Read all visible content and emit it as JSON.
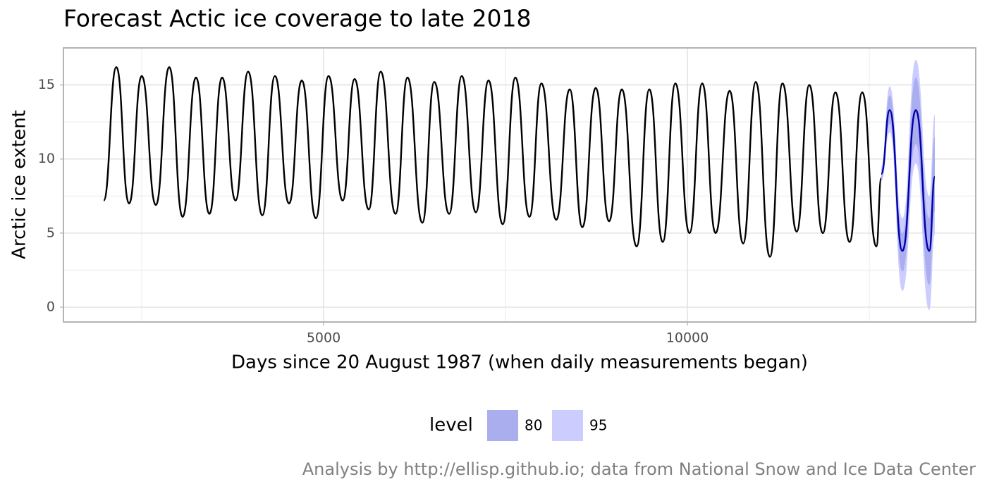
{
  "chart_data": {
    "type": "line",
    "title": "Forecast Actic ice coverage to late 2018",
    "x_label": "Days since 20 August 1987 (when daily measurements began)",
    "y_label": "Arctic ice extent",
    "caption": "Analysis by http://ellisp.github.io; data from National Snow and Ice Data Center",
    "xlim": [
      1424,
      13963
    ],
    "ylim": [
      -1,
      17.5
    ],
    "xticks": [
      5000,
      10000
    ],
    "yticks": [
      0,
      5,
      10,
      15
    ],
    "x_minor_ticks": [
      2500,
      7500,
      12500
    ],
    "y_minor_ticks": [
      2.5,
      7.5,
      12.5
    ],
    "grid": true,
    "legend_title": "level",
    "legend_position": "bottom",
    "series": [
      {
        "color": "#000000",
        "x": [
          1977,
          2151,
          2326,
          2500,
          2694,
          2878,
          3062,
          3246,
          3430,
          3605,
          3789,
          3963,
          4157,
          4331,
          4525,
          4700,
          4893,
          5068,
          5262,
          5426,
          5620,
          5785,
          5988,
          6153,
          6357,
          6521,
          6725,
          6899,
          7093,
          7267,
          7461,
          7636,
          7829,
          7994,
          8198,
          8382,
          8556,
          8740,
          8924,
          9099,
          9302,
          9477,
          9661,
          9835,
          10029,
          10204,
          10388,
          10581,
          10766,
          10940,
          11134,
          11308,
          11502,
          11676,
          11861,
          12035,
          12229,
          12403,
          12597,
          12665
        ],
        "values": [
          7.2,
          16.2,
          7.0,
          15.6,
          6.9,
          16.2,
          6.1,
          15.5,
          6.3,
          15.5,
          7.2,
          15.9,
          6.2,
          15.6,
          7.0,
          15.3,
          6.0,
          15.6,
          7.2,
          15.4,
          6.6,
          15.9,
          6.3,
          15.5,
          5.7,
          15.2,
          6.3,
          15.6,
          6.4,
          15.3,
          5.6,
          15.5,
          6.1,
          15.1,
          5.9,
          14.7,
          5.4,
          14.8,
          5.8,
          14.7,
          4.1,
          14.7,
          4.4,
          15.1,
          5.0,
          15.1,
          5.0,
          14.6,
          4.3,
          15.2,
          3.4,
          15.1,
          5.1,
          15.0,
          5.0,
          14.5,
          4.4,
          14.5,
          4.1,
          8.7
        ]
      },
      {
        "color": "#0000aa",
        "x": [
          12665,
          12781,
          12955,
          13140,
          13324,
          13401
        ],
        "values": [
          9.0,
          13.3,
          3.8,
          13.3,
          3.8,
          8.8
        ]
      }
    ],
    "bands": [
      {
        "name": "95",
        "color": "#ccccff",
        "x": [
          12665,
          12781,
          12955,
          13140,
          13324,
          13401
        ],
        "lower": [
          8.5,
          11.8,
          1.1,
          9.7,
          -0.2,
          4.9
        ],
        "upper": [
          9.5,
          14.9,
          6.0,
          16.7,
          7.5,
          13.0
        ]
      },
      {
        "name": "80",
        "color": "#aaaeee",
        "x": [
          12665,
          12781,
          12955,
          13140,
          13324,
          13401
        ],
        "lower": [
          8.7,
          12.4,
          2.4,
          11.0,
          1.5,
          6.5
        ],
        "upper": [
          9.3,
          14.3,
          5.0,
          15.5,
          6.0,
          11.5
        ]
      }
    ]
  }
}
